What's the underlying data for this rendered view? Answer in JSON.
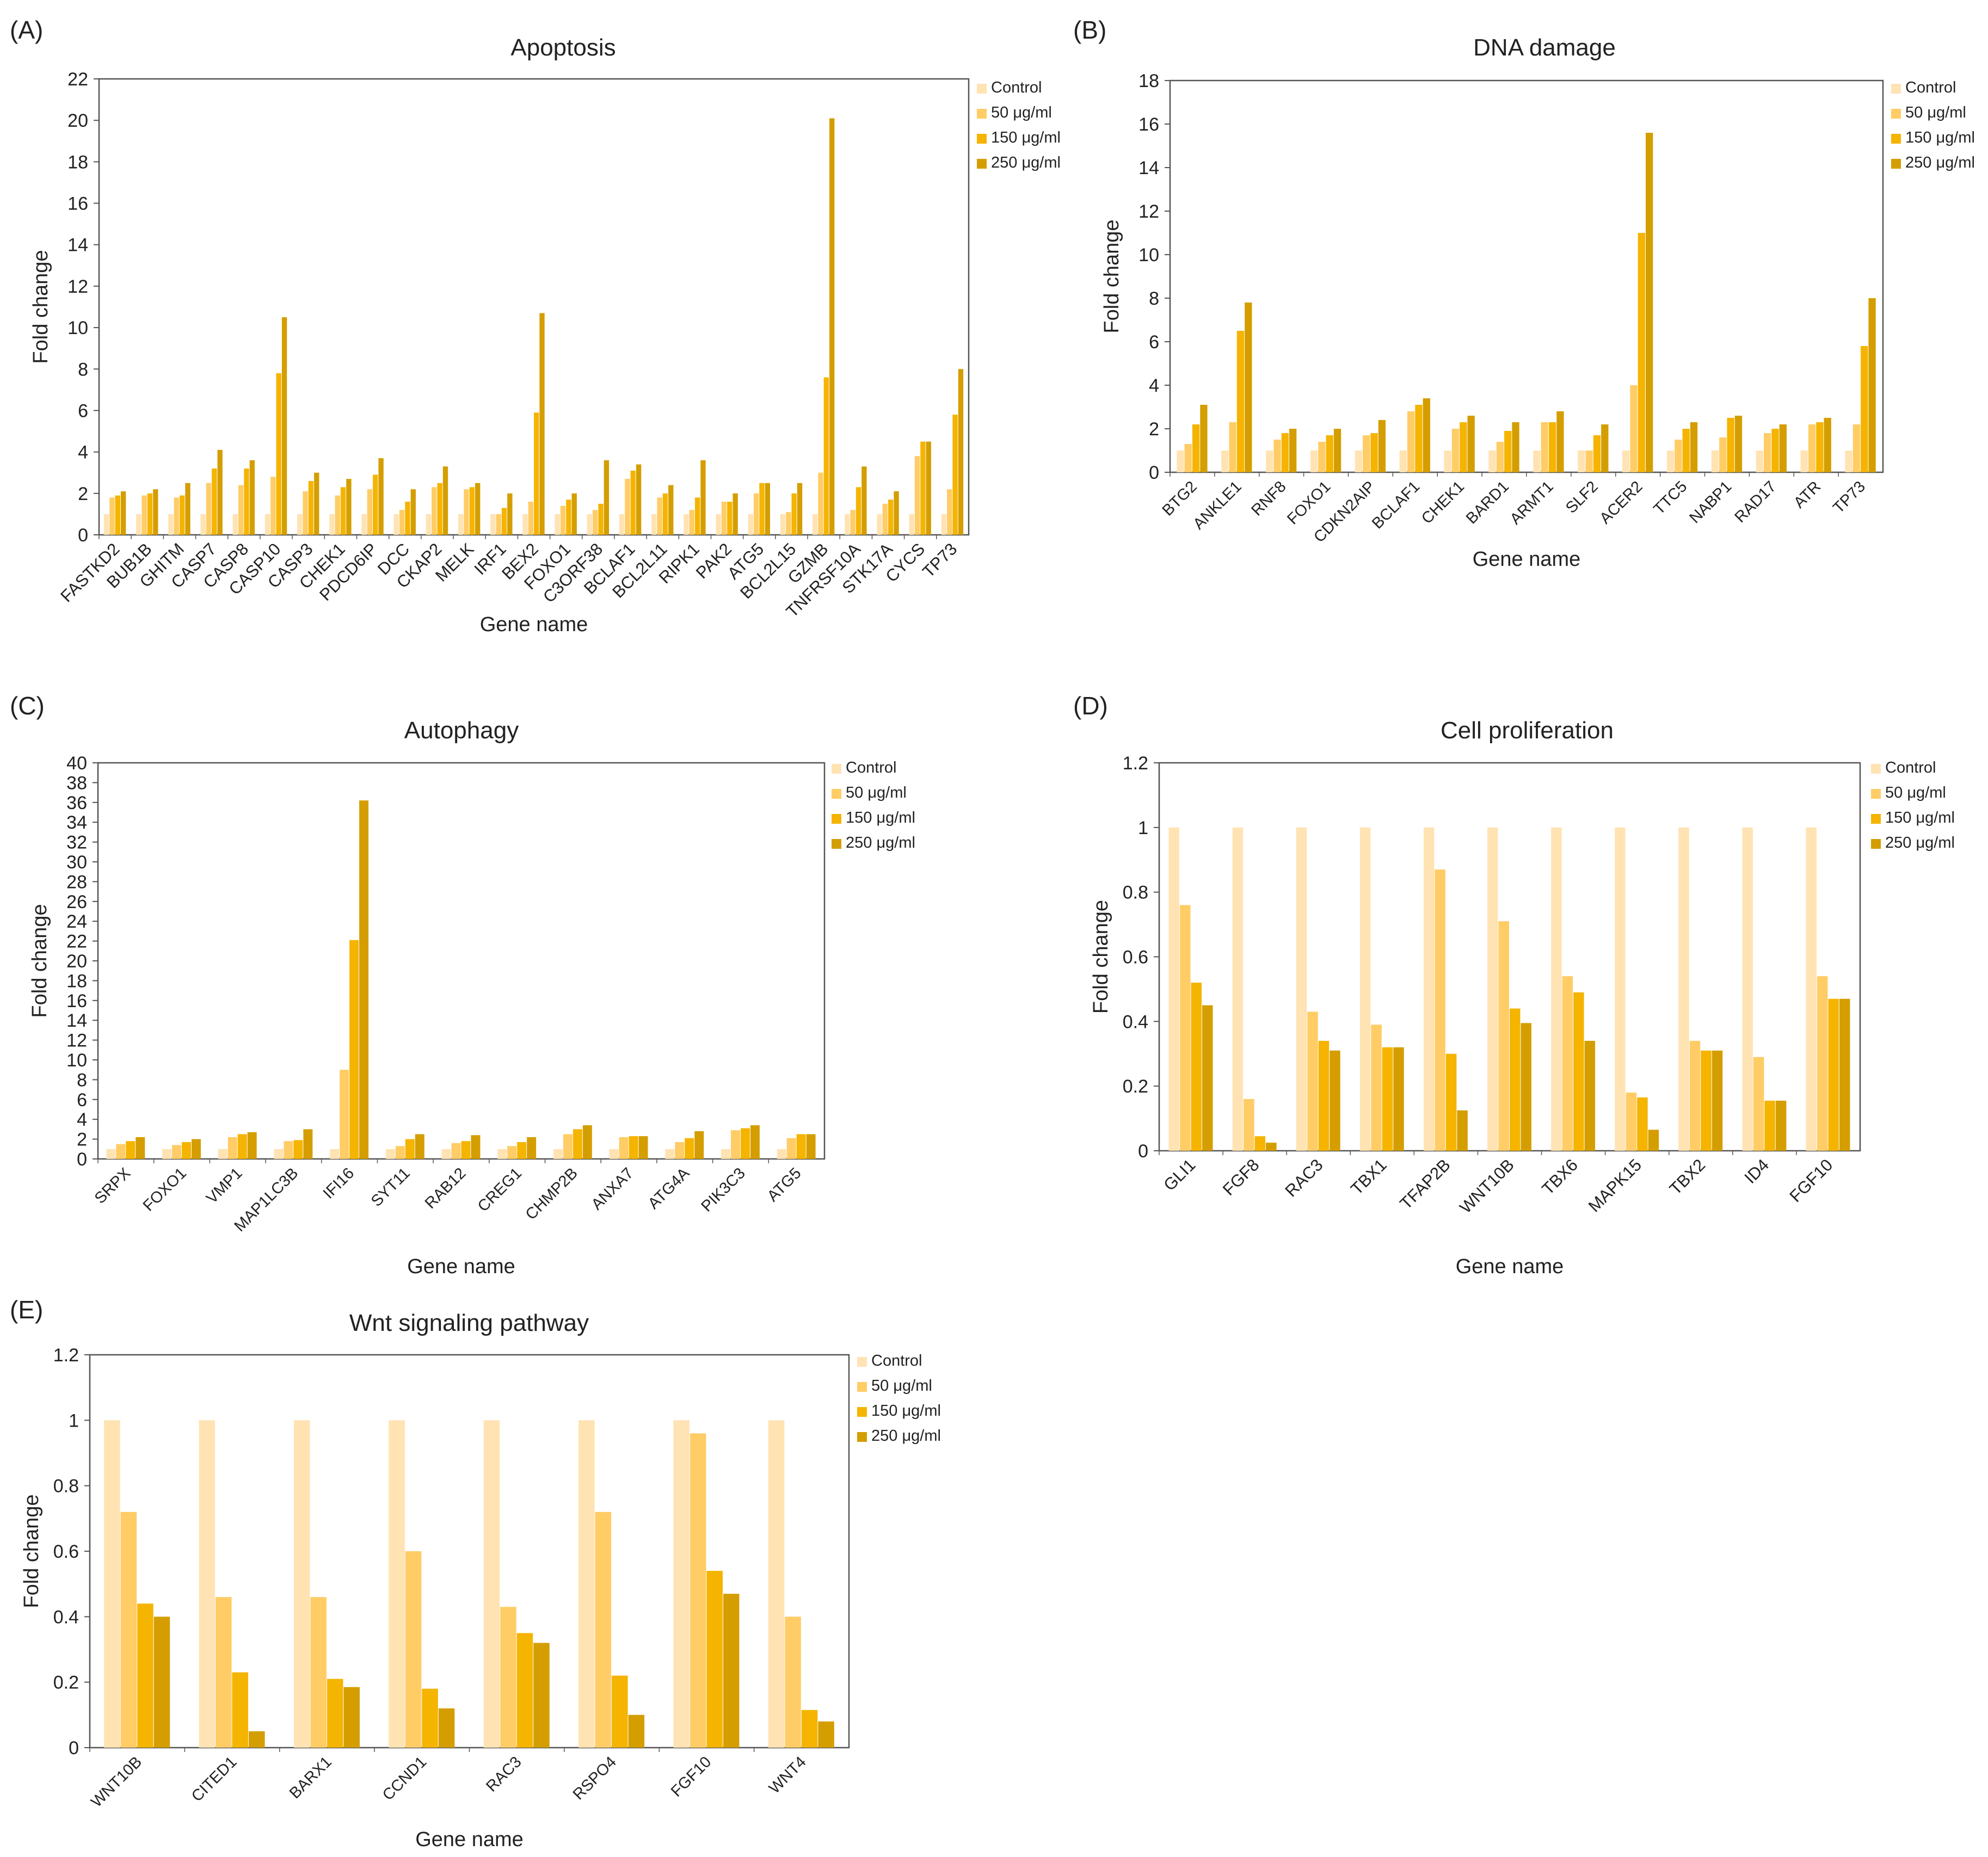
{
  "series_colors": [
    "#FFE3B3",
    "#FFCC66",
    "#F5B400",
    "#D49E00"
  ],
  "chart_data": [
    {
      "id": "A",
      "panel_label": "(A)",
      "type": "bar",
      "title": "Apoptosis",
      "xlabel": "Gene name",
      "ylabel": "Fold change",
      "ylim": [
        0,
        22
      ],
      "yticks": [
        0,
        2,
        4,
        6,
        8,
        10,
        12,
        14,
        16,
        18,
        20,
        22
      ],
      "grid": false,
      "legend": "top-right",
      "categories": [
        "FASTKD2",
        "BUB1B",
        "GHITM",
        "CASP7",
        "CASP8",
        "CASP10",
        "CASP3",
        "CHEK1",
        "PDCD6IP",
        "DCC",
        "CKAP2",
        "MELK",
        "IRF1",
        "BEX2",
        "FOXO1",
        "C3ORF38",
        "BCLAF1",
        "BCL2L11",
        "RIPK1",
        "PAK2",
        "ATG5",
        "BCL2L15",
        "GZMB",
        "TNFRSF10A",
        "STK17A",
        "CYCS",
        "TP73"
      ],
      "series": [
        {
          "name": "Control",
          "values": [
            1,
            1,
            1,
            1,
            1,
            1,
            1,
            1,
            1,
            1,
            1,
            1,
            1,
            1,
            1,
            1,
            1,
            1,
            1,
            1,
            1,
            1,
            1,
            1,
            1,
            1,
            1
          ]
        },
        {
          "name": "50 μg/ml",
          "values": [
            1.8,
            1.9,
            1.8,
            2.5,
            2.4,
            2.8,
            2.1,
            1.9,
            2.2,
            1.2,
            2.3,
            2.2,
            1.0,
            1.6,
            1.4,
            1.2,
            2.7,
            1.8,
            1.2,
            1.6,
            2.0,
            1.1,
            3.0,
            1.2,
            1.5,
            3.8,
            2.2
          ]
        },
        {
          "name": "150 μg/ml",
          "values": [
            1.9,
            2.0,
            1.9,
            3.2,
            3.2,
            7.8,
            2.6,
            2.3,
            2.9,
            1.6,
            2.5,
            2.3,
            1.3,
            5.9,
            1.7,
            1.5,
            3.1,
            2.0,
            1.8,
            1.6,
            2.5,
            2.0,
            7.6,
            2.3,
            1.7,
            4.5,
            5.8
          ]
        },
        {
          "name": "250 μg/ml",
          "values": [
            2.1,
            2.2,
            2.5,
            4.1,
            3.6,
            10.5,
            3.0,
            2.7,
            3.7,
            2.2,
            3.3,
            2.5,
            2.0,
            10.7,
            2.0,
            3.6,
            3.4,
            2.4,
            3.6,
            2.0,
            2.5,
            2.5,
            20.1,
            3.3,
            2.1,
            4.5,
            8.0
          ]
        }
      ]
    },
    {
      "id": "B",
      "panel_label": "(B)",
      "type": "bar",
      "title": "DNA damage",
      "xlabel": "Gene name",
      "ylabel": "Fold change",
      "ylim": [
        0,
        18
      ],
      "yticks": [
        0,
        2,
        4,
        6,
        8,
        10,
        12,
        14,
        16,
        18
      ],
      "grid": false,
      "legend": "top-right",
      "categories": [
        "BTG2",
        "ANKLE1",
        "RNF8",
        "FOXO1",
        "CDKN2AIP",
        "BCLAF1",
        "CHEK1",
        "BARD1",
        "ARMT1",
        "SLF2",
        "ACER2",
        "TTC5",
        "NABP1",
        "RAD17",
        "ATR",
        "TP73"
      ],
      "series": [
        {
          "name": "Control",
          "values": [
            1,
            1,
            1,
            1,
            1,
            1,
            1,
            1,
            1,
            1,
            1,
            1,
            1,
            1,
            1,
            1
          ]
        },
        {
          "name": "50 μg/ml",
          "values": [
            1.3,
            2.3,
            1.5,
            1.4,
            1.7,
            2.8,
            2.0,
            1.4,
            2.3,
            1.0,
            4.0,
            1.5,
            1.6,
            1.8,
            2.2,
            2.2
          ]
        },
        {
          "name": "150 μg/ml",
          "values": [
            2.2,
            6.5,
            1.8,
            1.7,
            1.8,
            3.1,
            2.3,
            1.9,
            2.3,
            1.7,
            11.0,
            2.0,
            2.5,
            2.0,
            2.3,
            5.8
          ]
        },
        {
          "name": "250 μg/ml",
          "values": [
            3.1,
            7.8,
            2.0,
            2.0,
            2.4,
            3.4,
            2.6,
            2.3,
            2.8,
            2.2,
            15.6,
            2.3,
            2.6,
            2.2,
            2.5,
            8.0
          ]
        }
      ]
    },
    {
      "id": "C",
      "panel_label": "(C)",
      "type": "bar",
      "title": "Autophagy",
      "xlabel": "Gene name",
      "ylabel": "Fold change",
      "ylim": [
        0,
        40
      ],
      "yticks": [
        0,
        2,
        4,
        6,
        8,
        10,
        12,
        14,
        16,
        18,
        20,
        22,
        24,
        26,
        28,
        30,
        32,
        34,
        36,
        38,
        40
      ],
      "grid": false,
      "legend": "top-right",
      "categories": [
        "SRPX",
        "FOXO1",
        "VMP1",
        "MAP1LC3B",
        "IFI16",
        "SYT11",
        "RAB12",
        "CREG1",
        "CHMP2B",
        "ANXA7",
        "ATG4A",
        "PIK3C3",
        "ATG5"
      ],
      "series": [
        {
          "name": "Control",
          "values": [
            1,
            1,
            1,
            1,
            1,
            1,
            1,
            1,
            1,
            1,
            1,
            1,
            1
          ]
        },
        {
          "name": "50 μg/ml",
          "values": [
            1.5,
            1.4,
            2.2,
            1.8,
            9.0,
            1.3,
            1.6,
            1.3,
            2.5,
            2.2,
            1.7,
            2.9,
            2.1
          ]
        },
        {
          "name": "150 μg/ml",
          "values": [
            1.8,
            1.7,
            2.5,
            1.9,
            22.1,
            2.0,
            1.8,
            1.7,
            3.0,
            2.3,
            2.1,
            3.1,
            2.5
          ]
        },
        {
          "name": "250 μg/ml",
          "values": [
            2.2,
            2.0,
            2.7,
            3.0,
            36.2,
            2.5,
            2.4,
            2.2,
            3.4,
            2.3,
            2.8,
            3.4,
            2.5
          ]
        }
      ]
    },
    {
      "id": "D",
      "panel_label": "(D)",
      "type": "bar",
      "title": "Cell proliferation",
      "xlabel": "Gene name",
      "ylabel": "Fold change",
      "ylim": [
        0,
        1.2
      ],
      "yticks": [
        0,
        0.2,
        0.4,
        0.6,
        0.8,
        1,
        1.2
      ],
      "grid": false,
      "legend": "top-right",
      "categories": [
        "GLI1",
        "FGF8",
        "RAC3",
        "TBX1",
        "TFAP2B",
        "WNT10B",
        "TBX6",
        "MAPK15",
        "TBX2",
        "ID4",
        "FGF10"
      ],
      "series": [
        {
          "name": "Control",
          "values": [
            1,
            1,
            1,
            1,
            1,
            1,
            1,
            1,
            1,
            1,
            1
          ]
        },
        {
          "name": "50 μg/ml",
          "values": [
            0.76,
            0.16,
            0.43,
            0.39,
            0.87,
            0.71,
            0.54,
            0.18,
            0.34,
            0.29,
            0.54
          ]
        },
        {
          "name": "150 μg/ml",
          "values": [
            0.52,
            0.045,
            0.34,
            0.32,
            0.3,
            0.44,
            0.49,
            0.165,
            0.31,
            0.155,
            0.47
          ]
        },
        {
          "name": "250 μg/ml",
          "values": [
            0.45,
            0.025,
            0.31,
            0.32,
            0.125,
            0.395,
            0.34,
            0.065,
            0.31,
            0.155,
            0.47
          ]
        }
      ]
    },
    {
      "id": "E",
      "panel_label": "(E)",
      "type": "bar",
      "title": "Wnt signaling pathway",
      "xlabel": "Gene name",
      "ylabel": "Fold change",
      "ylim": [
        0,
        1.2
      ],
      "yticks": [
        0,
        0.2,
        0.4,
        0.6,
        0.8,
        1,
        1.2
      ],
      "grid": false,
      "legend": "top-right",
      "categories": [
        "WNT10B",
        "CITED1",
        "BARX1",
        "CCND1",
        "RAC3",
        "RSPO4",
        "FGF10",
        "WNT4"
      ],
      "series": [
        {
          "name": "Control",
          "values": [
            1,
            1,
            1,
            1,
            1,
            1,
            1,
            1
          ]
        },
        {
          "name": "50 μg/ml",
          "values": [
            0.72,
            0.46,
            0.46,
            0.6,
            0.43,
            0.72,
            0.96,
            0.4
          ]
        },
        {
          "name": "150 μg/ml",
          "values": [
            0.44,
            0.23,
            0.21,
            0.18,
            0.35,
            0.22,
            0.54,
            0.115
          ]
        },
        {
          "name": "250 μg/ml",
          "values": [
            0.4,
            0.05,
            0.185,
            0.12,
            0.32,
            0.1,
            0.47,
            0.08
          ]
        }
      ]
    }
  ]
}
